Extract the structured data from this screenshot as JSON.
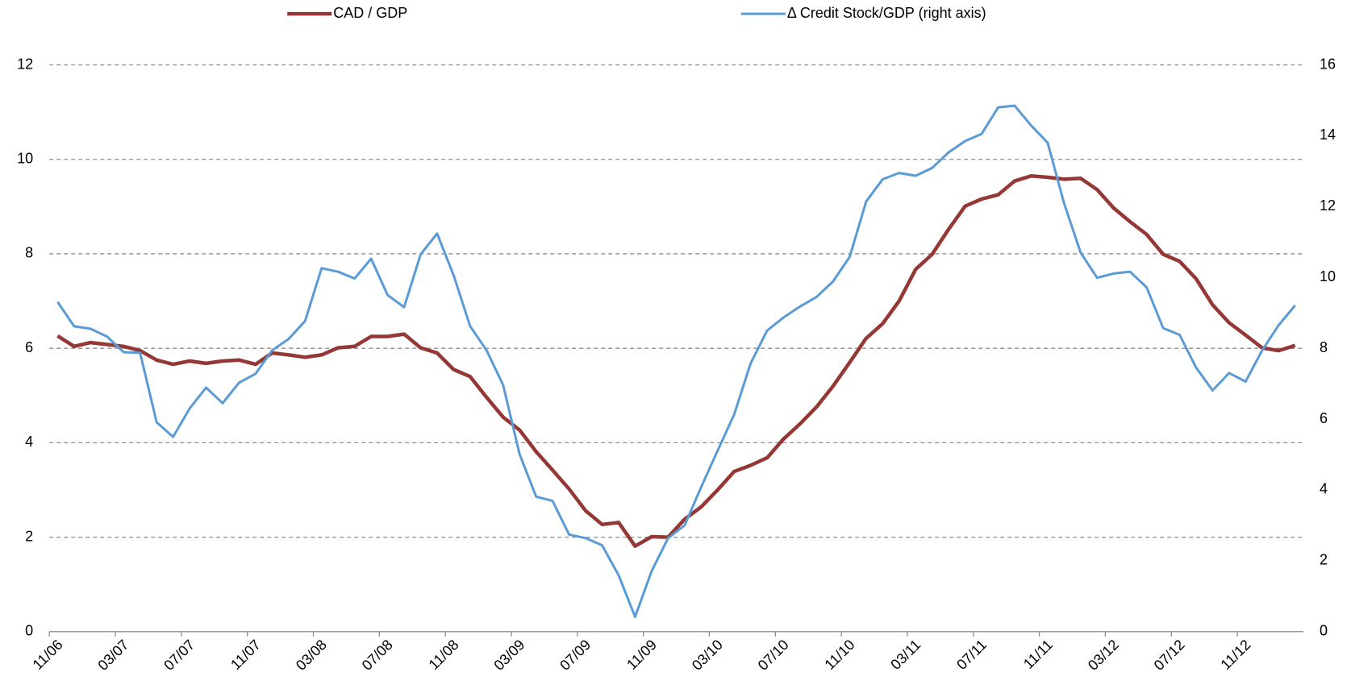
{
  "chart_data": {
    "type": "line",
    "categories": [
      "11/06",
      null,
      null,
      null,
      "03/07",
      null,
      null,
      null,
      "07/07",
      null,
      null,
      null,
      "11/07",
      null,
      null,
      null,
      "03/08",
      null,
      null,
      null,
      "07/08",
      null,
      null,
      null,
      "11/08",
      null,
      null,
      null,
      "03/09",
      null,
      null,
      null,
      "07/09",
      null,
      null,
      null,
      "11/09",
      null,
      null,
      null,
      "03/10",
      null,
      null,
      null,
      "07/10",
      null,
      null,
      null,
      "11/10",
      null,
      null,
      null,
      "03/11",
      null,
      null,
      null,
      "07/11",
      null,
      null,
      null,
      "11/11",
      null,
      null,
      null,
      "03/12",
      null,
      null,
      null,
      "07/12",
      null,
      null,
      null,
      "11/12",
      null,
      null,
      null
    ],
    "series": [
      {
        "name": "CAD / GDP",
        "color": "#953735",
        "axis": "y",
        "values": [
          6.26,
          6.04,
          6.12,
          6.08,
          6.04,
          5.95,
          5.75,
          5.66,
          5.73,
          5.68,
          5.73,
          5.75,
          5.66,
          5.9,
          5.86,
          5.81,
          5.86,
          6.01,
          6.04,
          6.25,
          6.25,
          6.3,
          6.01,
          5.9,
          5.55,
          5.4,
          4.96,
          4.54,
          4.27,
          3.81,
          3.42,
          3.02,
          2.56,
          2.27,
          2.31,
          1.81,
          2.01,
          2.0,
          2.38,
          2.64,
          3.0,
          3.39,
          3.52,
          3.68,
          4.08,
          4.4,
          4.76,
          5.2,
          5.7,
          6.21,
          6.52,
          7.0,
          7.67,
          7.99,
          8.52,
          9.01,
          9.16,
          9.25,
          9.54,
          9.65,
          9.62,
          9.58,
          9.6,
          9.36,
          8.97,
          8.68,
          8.41,
          7.99,
          7.84,
          7.47,
          6.92,
          6.54,
          6.28,
          6.01,
          5.95,
          6.06
        ]
      },
      {
        "name": "Δ Credit Stock/GDP (right axis)",
        "color": "#5b9bd5",
        "axis": "y2",
        "values": [
          9.31,
          8.62,
          8.55,
          8.33,
          7.89,
          7.87,
          5.91,
          5.5,
          6.3,
          6.89,
          6.45,
          7.03,
          7.28,
          7.94,
          8.26,
          8.77,
          10.26,
          10.16,
          9.97,
          10.53,
          9.5,
          9.16,
          10.65,
          11.24,
          10.06,
          8.62,
          7.94,
          6.96,
          5.01,
          3.81,
          3.69,
          2.74,
          2.64,
          2.44,
          1.59,
          0.42,
          1.71,
          2.64,
          3.0,
          4.08,
          5.11,
          6.13,
          7.57,
          8.5,
          8.87,
          9.18,
          9.45,
          9.89,
          10.58,
          12.14,
          12.77,
          12.95,
          12.87,
          13.09,
          13.53,
          13.85,
          14.05,
          14.8,
          14.85,
          14.29,
          13.8,
          12.09,
          10.7,
          9.99,
          10.11,
          10.16,
          9.72,
          8.57,
          8.38,
          7.45,
          6.81,
          7.3,
          7.06,
          7.94,
          8.65,
          9.21
        ]
      }
    ],
    "ylim": [
      0,
      12
    ],
    "yticks": [
      0,
      2,
      4,
      6,
      8,
      10,
      12
    ],
    "y2lim": [
      0,
      16
    ],
    "y2ticks": [
      0,
      2,
      4,
      6,
      8,
      10,
      12,
      14,
      16
    ],
    "grid": true,
    "legend": "top"
  }
}
